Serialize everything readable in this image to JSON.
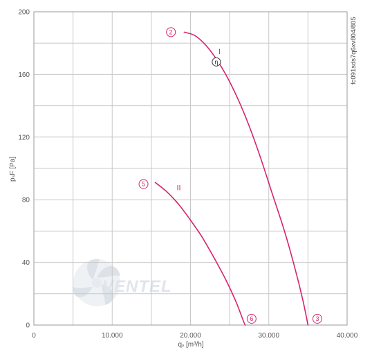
{
  "chart_data": {
    "type": "line",
    "xlabel": "qᵥ [m³/h]",
    "ylabel": "pₛF [Pa]",
    "xlim": [
      0,
      40000
    ],
    "ylim": [
      0,
      200
    ],
    "x_ticks": [
      0,
      5000,
      10000,
      15000,
      20000,
      25000,
      30000,
      35000,
      40000
    ],
    "x_tick_labels": [
      "0",
      "",
      "10.000",
      "",
      "20.000",
      "",
      "30.000",
      "",
      "40.000"
    ],
    "y_ticks": [
      0,
      20,
      40,
      60,
      80,
      100,
      120,
      140,
      160,
      180,
      200
    ],
    "y_tick_labels": [
      "0",
      "",
      "40",
      "",
      "80",
      "",
      "120",
      "",
      "160",
      "",
      "200"
    ],
    "grid": true,
    "series": [
      {
        "name": "I",
        "color": "#d6246e",
        "points": [
          [
            19200,
            187
          ],
          [
            20500,
            185
          ],
          [
            21700,
            180
          ],
          [
            23000,
            172
          ],
          [
            24500,
            160
          ],
          [
            26000,
            145
          ],
          [
            27500,
            127
          ],
          [
            29000,
            106
          ],
          [
            30500,
            83
          ],
          [
            32000,
            60
          ],
          [
            33300,
            37
          ],
          [
            34300,
            17
          ],
          [
            35000,
            0
          ]
        ]
      },
      {
        "name": "II",
        "color": "#d6246e",
        "points": [
          [
            15500,
            91
          ],
          [
            17000,
            85
          ],
          [
            18500,
            77
          ],
          [
            20000,
            67
          ],
          [
            21500,
            56
          ],
          [
            23000,
            43
          ],
          [
            24500,
            29
          ],
          [
            25800,
            15
          ],
          [
            26800,
            2
          ],
          [
            27000,
            0
          ]
        ]
      }
    ],
    "markers": [
      {
        "label": "2",
        "x": 17500,
        "y": 187
      },
      {
        "label": "3",
        "x": 36200,
        "y": 4
      },
      {
        "label": "5",
        "x": 14000,
        "y": 90
      },
      {
        "label": "6",
        "x": 27800,
        "y": 4
      }
    ],
    "efficiency_marker": {
      "label": "η",
      "x": 23300,
      "y": 168
    },
    "curve_labels": [
      {
        "text": "I",
        "x": 23700,
        "y": 173
      },
      {
        "text": "II",
        "x": 18500,
        "y": 86
      }
    ],
    "reference_code": "fc091sds7q6xv804/805",
    "watermark": "VENTEL"
  }
}
